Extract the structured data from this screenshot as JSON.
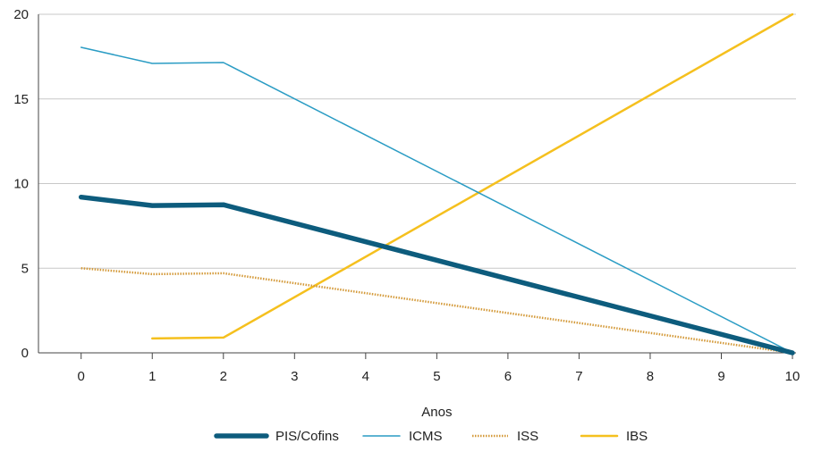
{
  "chart_data": {
    "type": "line",
    "title": "",
    "xlabel": "Anos",
    "ylabel": "",
    "x": [
      0,
      1,
      2,
      3,
      4,
      5,
      6,
      7,
      8,
      9,
      10
    ],
    "xlim": [
      -0.6,
      10.05
    ],
    "ylim": [
      0,
      20
    ],
    "yticks": [
      0,
      5,
      10,
      15,
      20
    ],
    "grid": "horizontal",
    "legend_position": "bottom",
    "series": [
      {
        "name": "PIS/Cofins",
        "color": "#0d5c7d",
        "style": "thick",
        "x": [
          0,
          1,
          2,
          10
        ],
        "values": [
          9.2,
          8.7,
          8.75,
          0
        ]
      },
      {
        "name": "ICMS",
        "color": "#2a9cc4",
        "style": "thin",
        "x": [
          0,
          1,
          2,
          10
        ],
        "values": [
          18.05,
          17.1,
          17.15,
          0
        ]
      },
      {
        "name": "ISS",
        "color": "#d49a3a",
        "style": "dotted",
        "x": [
          0,
          1,
          2,
          10
        ],
        "values": [
          5.0,
          4.65,
          4.7,
          0
        ]
      },
      {
        "name": "IBS",
        "color": "#f5c01e",
        "style": "medium",
        "x": [
          1,
          2,
          10
        ],
        "values": [
          0.85,
          0.9,
          20
        ]
      }
    ]
  }
}
